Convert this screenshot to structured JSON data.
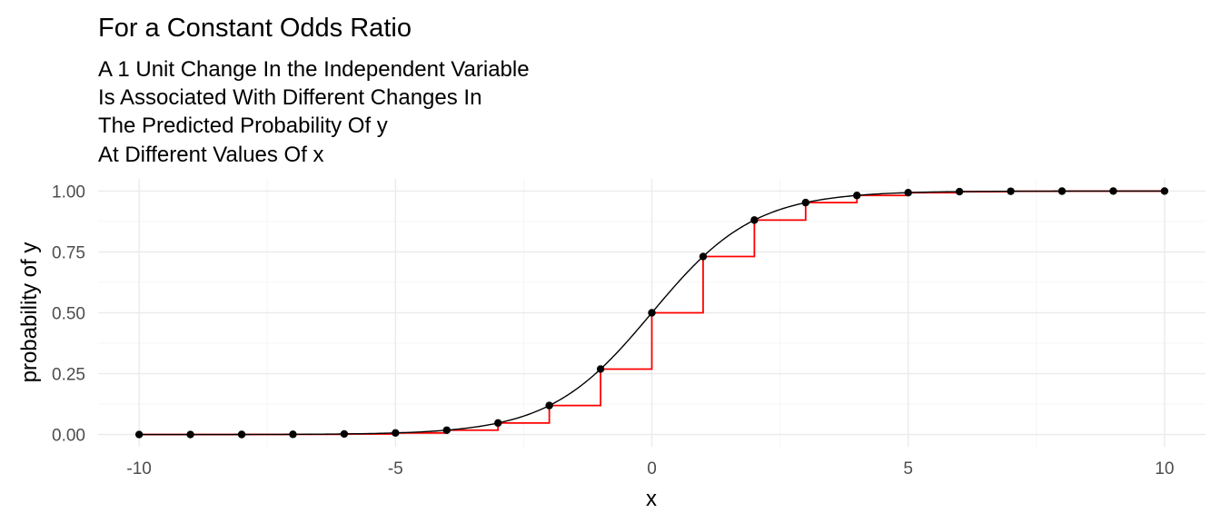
{
  "chart_data": {
    "type": "line",
    "title": "For a Constant Odds Ratio",
    "subtitle_lines": [
      "A 1 Unit Change In the Independent Variable",
      "Is Associated With Different Changes In",
      "The Predicted Probability Of y",
      "At Different Values Of x"
    ],
    "xlabel": "x",
    "ylabel": "probability of y",
    "xlim": [
      -10.8,
      10.8
    ],
    "ylim": [
      -0.05,
      1.05
    ],
    "x_ticks": [
      -10,
      -5,
      0,
      5,
      10
    ],
    "x_tick_labels": [
      "-10",
      "-5",
      "0",
      "5",
      "10"
    ],
    "x_minor_ticks": [
      -7.5,
      -2.5,
      2.5,
      7.5
    ],
    "y_ticks": [
      0,
      0.25,
      0.5,
      0.75,
      1
    ],
    "y_tick_labels": [
      "0.00",
      "0.25",
      "0.50",
      "0.75",
      "1.00"
    ],
    "y_minor_ticks": [
      0.125,
      0.375,
      0.625,
      0.875
    ],
    "grid": true,
    "x": [
      -10,
      -9,
      -8,
      -7,
      -6,
      -5,
      -4,
      -3,
      -2,
      -1,
      0,
      1,
      2,
      3,
      4,
      5,
      6,
      7,
      8,
      9,
      10
    ],
    "series": [
      {
        "type": "line",
        "color": "#000000",
        "values": [
          4.54e-05,
          0.0001234,
          0.0003354,
          0.000911,
          0.002473,
          0.006693,
          0.017986,
          0.047426,
          0.119203,
          0.268941,
          0.5,
          0.731059,
          0.880797,
          0.952574,
          0.982014,
          0.993307,
          0.997527,
          0.999089,
          0.999665,
          0.999877,
          0.999955
        ]
      },
      {
        "type": "step",
        "color": "#ff0000",
        "values": [
          4.54e-05,
          0.0001234,
          0.0003354,
          0.000911,
          0.002473,
          0.006693,
          0.017986,
          0.047426,
          0.119203,
          0.268941,
          0.5,
          0.731059,
          0.880797,
          0.952574,
          0.982014,
          0.993307,
          0.997527,
          0.999089,
          0.999665,
          0.999877,
          0.999955
        ]
      },
      {
        "type": "scatter",
        "color": "#000000",
        "values": [
          4.54e-05,
          0.0001234,
          0.0003354,
          0.000911,
          0.002473,
          0.006693,
          0.017986,
          0.047426,
          0.119203,
          0.268941,
          0.5,
          0.731059,
          0.880797,
          0.952574,
          0.982014,
          0.993307,
          0.997527,
          0.999089,
          0.999665,
          0.999877,
          0.999955
        ]
      }
    ]
  }
}
